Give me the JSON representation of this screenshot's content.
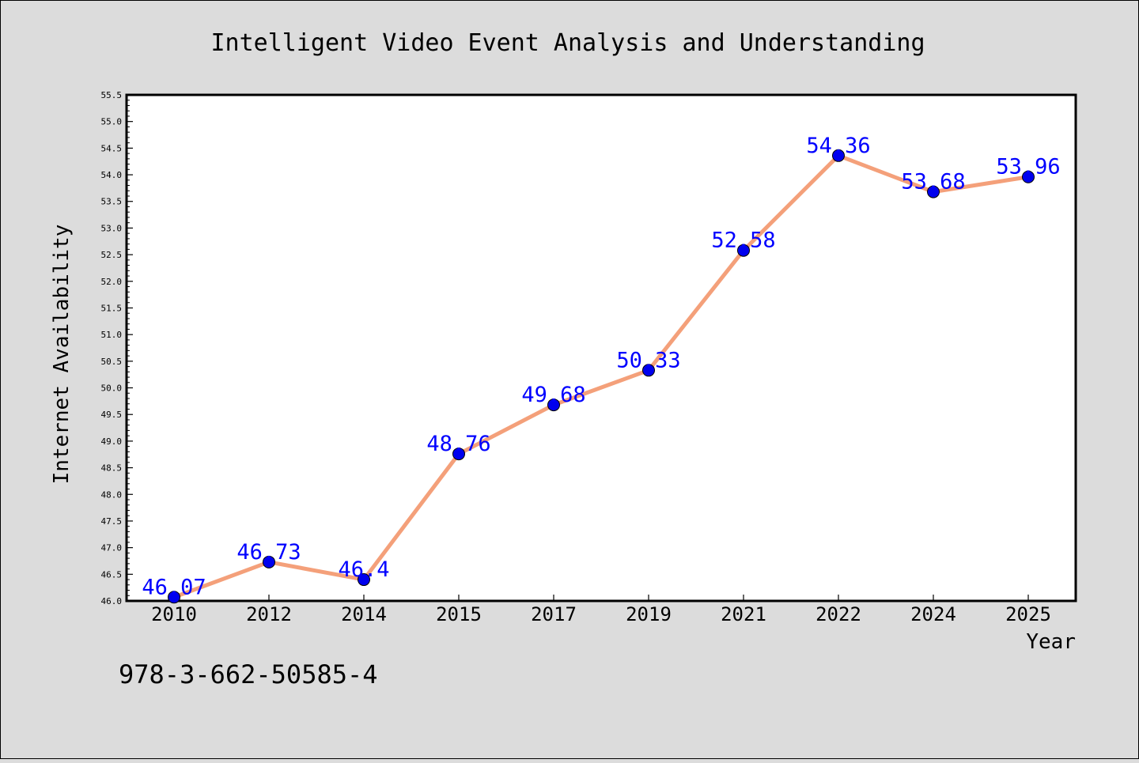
{
  "chart_data": {
    "type": "line",
    "title": "Intelligent Video Event Analysis and Understanding",
    "xlabel": "Year",
    "ylabel": "Internet Availability",
    "categories": [
      "2010",
      "2012",
      "2014",
      "2015",
      "2017",
      "2019",
      "2021",
      "2022",
      "2024",
      "2025"
    ],
    "series": [
      {
        "values": [
          46.07,
          46.73,
          46.4,
          48.76,
          49.68,
          50.33,
          52.58,
          54.36,
          53.68,
          53.96
        ],
        "labels": [
          "46.07",
          "46.73",
          "46.4",
          "48.76",
          "49.68",
          "50.33",
          "52.58",
          "54.36",
          "53.68",
          "53.96"
        ],
        "line_color": "#f4a07a",
        "marker_color": "#0000ee",
        "label_color": "#0000ff"
      }
    ],
    "ylim": [
      46.0,
      55.5
    ],
    "ytick_step": 0.5,
    "grid": false,
    "legend": "none"
  },
  "footer": {
    "isbn": "978-3-662-50585-4"
  },
  "colors": {
    "background": "#dcdcdc",
    "plot_background": "#ffffff",
    "axis": "#000000"
  }
}
